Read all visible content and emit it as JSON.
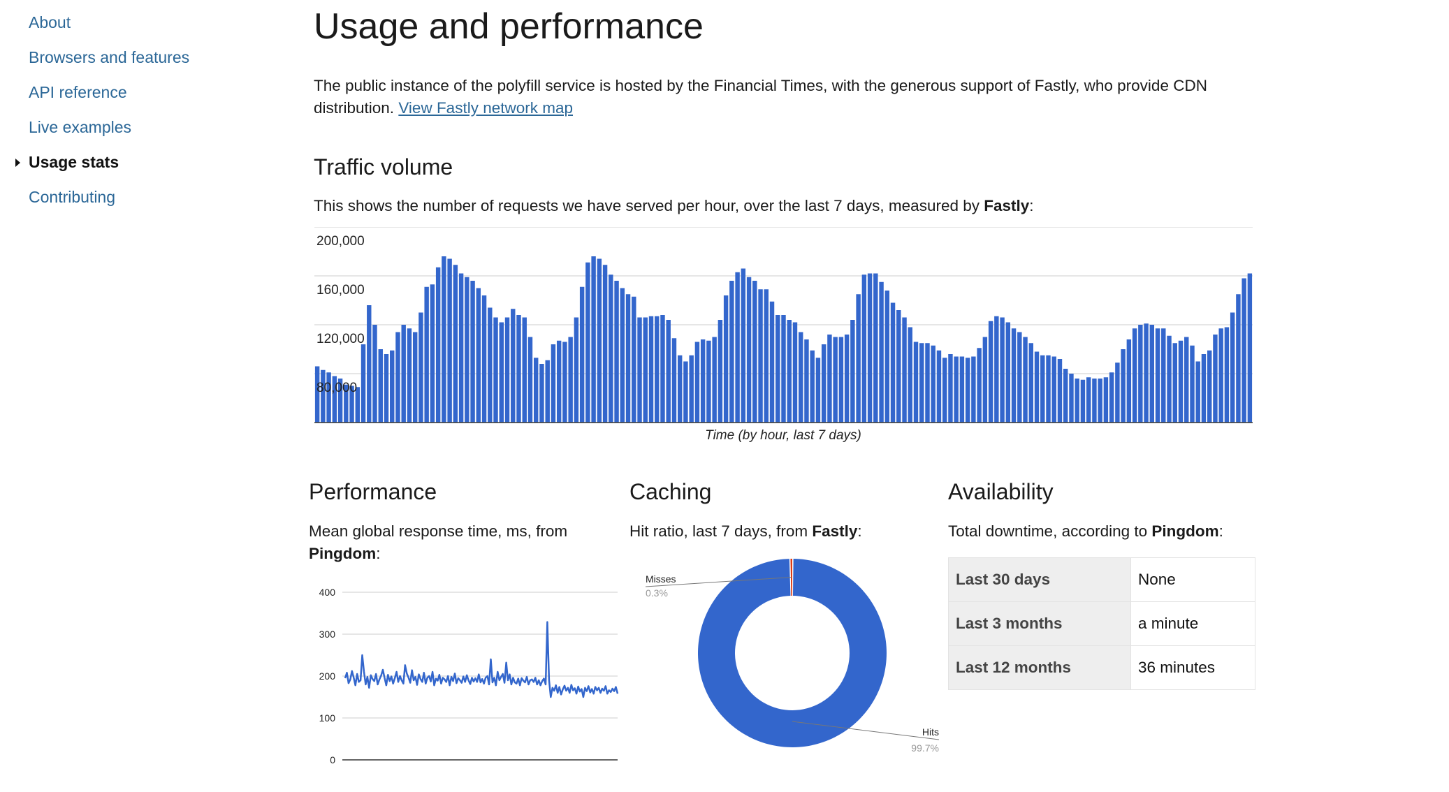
{
  "sidebar": {
    "items": [
      {
        "label": "About",
        "active": false
      },
      {
        "label": "Browsers and features",
        "active": false
      },
      {
        "label": "API reference",
        "active": false
      },
      {
        "label": "Live examples",
        "active": false
      },
      {
        "label": "Usage stats",
        "active": true
      },
      {
        "label": "Contributing",
        "active": false
      }
    ]
  },
  "main": {
    "title": "Usage and performance",
    "intro": {
      "text": "The public instance of the polyfill service is hosted by the Financial Times, with the generous support of Fastly, who provide CDN distribution.",
      "link_label": "View Fastly network map"
    },
    "traffic": {
      "heading": "Traffic volume",
      "desc_prefix": "This shows the number of requests we have served per hour, over the last 7 days, measured by",
      "desc_strong": "Fastly",
      "desc_suffix": ":"
    },
    "performance": {
      "heading": "Performance",
      "desc_prefix": "Mean global response time, ms, from",
      "desc_strong": "Pingdom",
      "desc_suffix": ":"
    },
    "caching": {
      "heading": "Caching",
      "desc_prefix": "Hit ratio, last 7 days, from",
      "desc_strong": "Fastly",
      "desc_suffix": ":"
    },
    "availability": {
      "heading": "Availability",
      "desc_prefix": "Total downtime, according to",
      "desc_strong": "Pingdom",
      "desc_suffix": ":",
      "rows": [
        {
          "period": "Last 30 days",
          "downtime": "None"
        },
        {
          "period": "Last 3 months",
          "downtime": "a minute"
        },
        {
          "period": "Last 12 months",
          "downtime": "36 minutes"
        }
      ]
    }
  },
  "chart_data": [
    {
      "type": "bar",
      "title": "",
      "xlabel": "Time (by hour, last 7 days)",
      "ylabel": "",
      "ylim": [
        40000,
        200000
      ],
      "yticks": [
        "200,000",
        "160,000",
        "120,000",
        "80,000"
      ],
      "ytick_values": [
        200000,
        160000,
        120000,
        80000
      ],
      "color": "#3366cc",
      "values": [
        86000,
        83000,
        81000,
        78000,
        76000,
        71000,
        70000,
        69000,
        104000,
        136000,
        120000,
        100000,
        96000,
        99000,
        114000,
        120000,
        117000,
        114000,
        130000,
        151000,
        153000,
        167000,
        176000,
        174000,
        169000,
        162000,
        159000,
        156000,
        150000,
        144000,
        134000,
        126000,
        122000,
        126000,
        133000,
        128000,
        126000,
        110000,
        93000,
        88000,
        91000,
        104000,
        107000,
        106000,
        110000,
        126000,
        151000,
        171000,
        176000,
        174000,
        169000,
        161000,
        156000,
        150000,
        145000,
        143000,
        126000,
        126000,
        127000,
        127000,
        128000,
        124000,
        109000,
        95000,
        90000,
        95000,
        106000,
        108000,
        107000,
        110000,
        124000,
        144000,
        156000,
        163000,
        166000,
        159000,
        156000,
        149000,
        149000,
        139000,
        128000,
        128000,
        124000,
        122000,
        114000,
        108000,
        99000,
        93000,
        104000,
        112000,
        110000,
        110000,
        112000,
        124000,
        145000,
        161000,
        162000,
        162000,
        155000,
        148000,
        138000,
        132000,
        126000,
        118000,
        106000,
        105000,
        105000,
        103000,
        99000,
        93000,
        96000,
        94000,
        94000,
        93000,
        94000,
        101000,
        110000,
        123000,
        127000,
        126000,
        122000,
        117000,
        114000,
        110000,
        105000,
        98000,
        95000,
        95000,
        94000,
        92000,
        84000,
        80000,
        76000,
        75000,
        77000,
        76000,
        76000,
        77000,
        81000,
        89000,
        100000,
        108000,
        117000,
        120000,
        121000,
        120000,
        117000,
        117000,
        111000,
        105000,
        107000,
        110000,
        103000,
        90000,
        96000,
        99000,
        112000,
        117000,
        118000,
        130000,
        145000,
        158000,
        162000
      ]
    },
    {
      "type": "line",
      "title": "",
      "xlabel": "",
      "ylabel": "",
      "ylim": [
        0,
        400
      ],
      "yticks": [
        400,
        300,
        200,
        100,
        0
      ],
      "color": "#3366cc",
      "values": [
        195,
        208,
        183,
        192,
        212,
        196,
        178,
        205,
        186,
        190,
        250,
        210,
        180,
        198,
        172,
        202,
        193,
        188,
        205,
        180,
        192,
        201,
        215,
        196,
        178,
        203,
        188,
        199,
        182,
        195,
        210,
        186,
        200,
        190,
        182,
        226,
        206,
        196,
        184,
        214,
        190,
        198,
        179,
        204,
        193,
        186,
        208,
        182,
        196,
        200,
        187,
        210,
        178,
        194,
        189,
        203,
        182,
        196,
        192,
        186,
        200,
        178,
        198,
        188,
        206,
        183,
        195,
        190,
        184,
        199,
        186,
        202,
        190,
        181,
        196,
        187,
        195,
        186,
        204,
        185,
        193,
        182,
        196,
        200,
        180,
        240,
        185,
        196,
        178,
        210,
        190,
        198,
        205,
        184,
        232,
        190,
        204,
        180,
        196,
        185,
        182,
        194,
        178,
        195,
        189,
        185,
        198,
        180,
        190,
        192,
        186,
        196,
        180,
        190,
        178,
        188,
        194,
        180,
        329,
        190,
        150,
        172,
        165,
        178,
        160,
        174,
        156,
        168,
        177,
        165,
        172,
        160,
        179,
        166,
        171,
        158,
        175,
        163,
        169,
        150,
        172,
        164,
        176,
        161,
        169,
        158,
        174,
        166,
        172,
        160,
        170,
        165,
        176,
        158,
        166,
        162,
        170,
        164,
        174,
        158
      ]
    },
    {
      "type": "pie",
      "title": "",
      "color_hits": "#3366cc",
      "slices": [
        {
          "label": "Misses",
          "value": 0.3,
          "display": "0.3%"
        },
        {
          "label": "Hits",
          "value": 99.7,
          "display": "99.7%"
        }
      ]
    }
  ]
}
